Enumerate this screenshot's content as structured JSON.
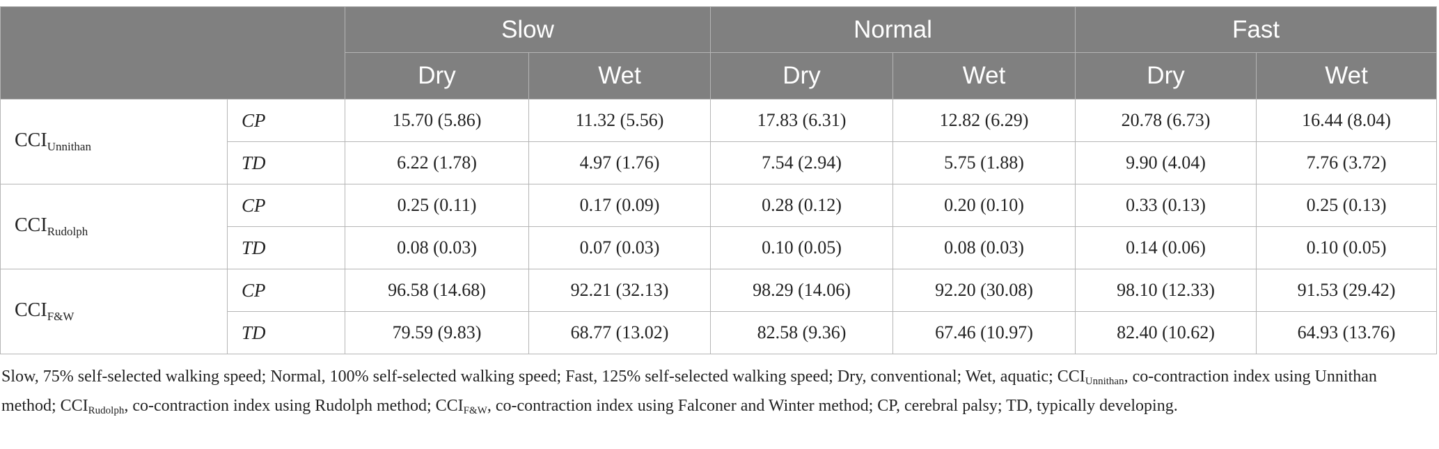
{
  "header": {
    "speeds": [
      "Slow",
      "Normal",
      "Fast"
    ],
    "conditions": [
      "Dry",
      "Wet",
      "Dry",
      "Wet",
      "Dry",
      "Wet"
    ]
  },
  "measures": [
    {
      "base": "CCI",
      "sub": "Unnithan",
      "rows": [
        {
          "group": "CP",
          "values": [
            "15.70 (5.86)",
            "11.32 (5.56)",
            "17.83 (6.31)",
            "12.82 (6.29)",
            "20.78 (6.73)",
            "16.44 (8.04)"
          ]
        },
        {
          "group": "TD",
          "values": [
            "6.22 (1.78)",
            "4.97 (1.76)",
            "7.54 (2.94)",
            "5.75 (1.88)",
            "9.90 (4.04)",
            "7.76 (3.72)"
          ]
        }
      ]
    },
    {
      "base": "CCI",
      "sub": "Rudolph",
      "rows": [
        {
          "group": "CP",
          "values": [
            "0.25 (0.11)",
            "0.17 (0.09)",
            "0.28 (0.12)",
            "0.20 (0.10)",
            "0.33 (0.13)",
            "0.25 (0.13)"
          ]
        },
        {
          "group": "TD",
          "values": [
            "0.08 (0.03)",
            "0.07 (0.03)",
            "0.10 (0.05)",
            "0.08 (0.03)",
            "0.14 (0.06)",
            "0.10 (0.05)"
          ]
        }
      ]
    },
    {
      "base": "CCI",
      "sub": "F&W",
      "rows": [
        {
          "group": "CP",
          "values": [
            "96.58 (14.68)",
            "92.21 (32.13)",
            "98.29 (14.06)",
            "92.20 (30.08)",
            "98.10 (12.33)",
            "91.53 (29.42)"
          ]
        },
        {
          "group": "TD",
          "values": [
            "79.59 (9.83)",
            "68.77 (13.02)",
            "82.58 (9.36)",
            "67.46 (10.97)",
            "82.40 (10.62)",
            "64.93 (13.76)"
          ]
        }
      ]
    }
  ],
  "caption": {
    "part1": "Slow, 75% self-selected walking speed; Normal, 100% self-selected walking speed; Fast, 125% self-selected walking speed; Dry, conventional; Wet, aquatic; ",
    "cci1_base": "CCI",
    "cci1_sub": "Unnithan",
    "part2": ", co-contraction index using Unnithan method; ",
    "cci2_base": "CCI",
    "cci2_sub": "Rudolph",
    "part3": ", co-contraction index using Rudolph method; ",
    "cci3_base": "CCI",
    "cci3_sub": "F&W",
    "part4": ", co-contraction index using Falconer and Winter method; CP, cerebral palsy; TD, typically developing."
  }
}
